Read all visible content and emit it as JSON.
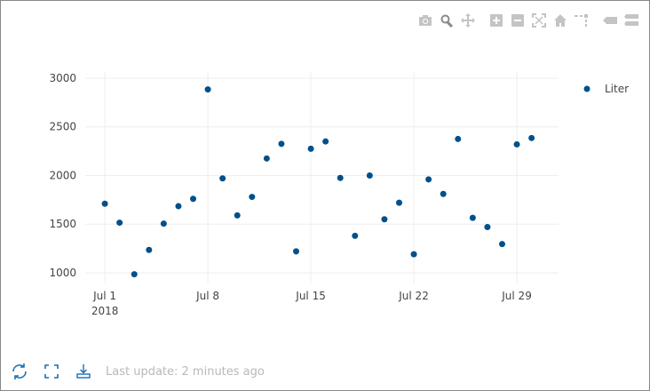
{
  "modebar": [
    {
      "name": "camera-icon",
      "active": false
    },
    {
      "name": "zoom-icon",
      "active": true
    },
    {
      "name": "pan-icon",
      "active": false
    },
    {
      "name": "zoom-in-icon",
      "active": false
    },
    {
      "name": "zoom-out-icon",
      "active": false
    },
    {
      "name": "autoscale-icon",
      "active": false
    },
    {
      "name": "home-icon",
      "active": false
    },
    {
      "name": "spikelines-icon",
      "active": false
    },
    {
      "name": "hover-closest-icon",
      "active": false
    },
    {
      "name": "hover-compare-icon",
      "active": false
    }
  ],
  "footer": {
    "last_update": "Last update: 2 minutes ago",
    "icons": [
      "refresh-icon",
      "fullscreen-icon",
      "download-icon"
    ]
  },
  "colors": {
    "marker": "#00508c",
    "grid": "#eeeeee",
    "accent": "#1a6fb5"
  },
  "chart_data": {
    "type": "scatter",
    "x": [
      "2018-07-01",
      "2018-07-02",
      "2018-07-03",
      "2018-07-04",
      "2018-07-05",
      "2018-07-06",
      "2018-07-07",
      "2018-07-08",
      "2018-07-09",
      "2018-07-10",
      "2018-07-11",
      "2018-07-12",
      "2018-07-13",
      "2018-07-14",
      "2018-07-15",
      "2018-07-16",
      "2018-07-17",
      "2018-07-18",
      "2018-07-19",
      "2018-07-20",
      "2018-07-21",
      "2018-07-22",
      "2018-07-23",
      "2018-07-24",
      "2018-07-25",
      "2018-07-26",
      "2018-07-27",
      "2018-07-28",
      "2018-07-29",
      "2018-07-30"
    ],
    "series": [
      {
        "name": "Liter",
        "values": [
          1710,
          1515,
          985,
          1235,
          1505,
          1685,
          1760,
          2885,
          1970,
          1590,
          1780,
          2175,
          2325,
          1220,
          2275,
          2350,
          1975,
          1380,
          2000,
          1550,
          1720,
          1190,
          1960,
          1810,
          2375,
          1565,
          1470,
          1295,
          2320,
          2385
        ]
      }
    ],
    "xticks": [
      {
        "date": "2018-07-01",
        "label": "Jul 1",
        "sub": "2018"
      },
      {
        "date": "2018-07-08",
        "label": "Jul 8"
      },
      {
        "date": "2018-07-15",
        "label": "Jul 15"
      },
      {
        "date": "2018-07-22",
        "label": "Jul 22"
      },
      {
        "date": "2018-07-29",
        "label": "Jul 29"
      }
    ],
    "yticks": [
      1000,
      1500,
      2000,
      2500,
      3000
    ],
    "xlim": [
      "2018-06-29T16:00",
      "2018-07-31T20:00"
    ],
    "ylim": [
      890,
      3064
    ],
    "grid": true,
    "legend": "top-right"
  }
}
